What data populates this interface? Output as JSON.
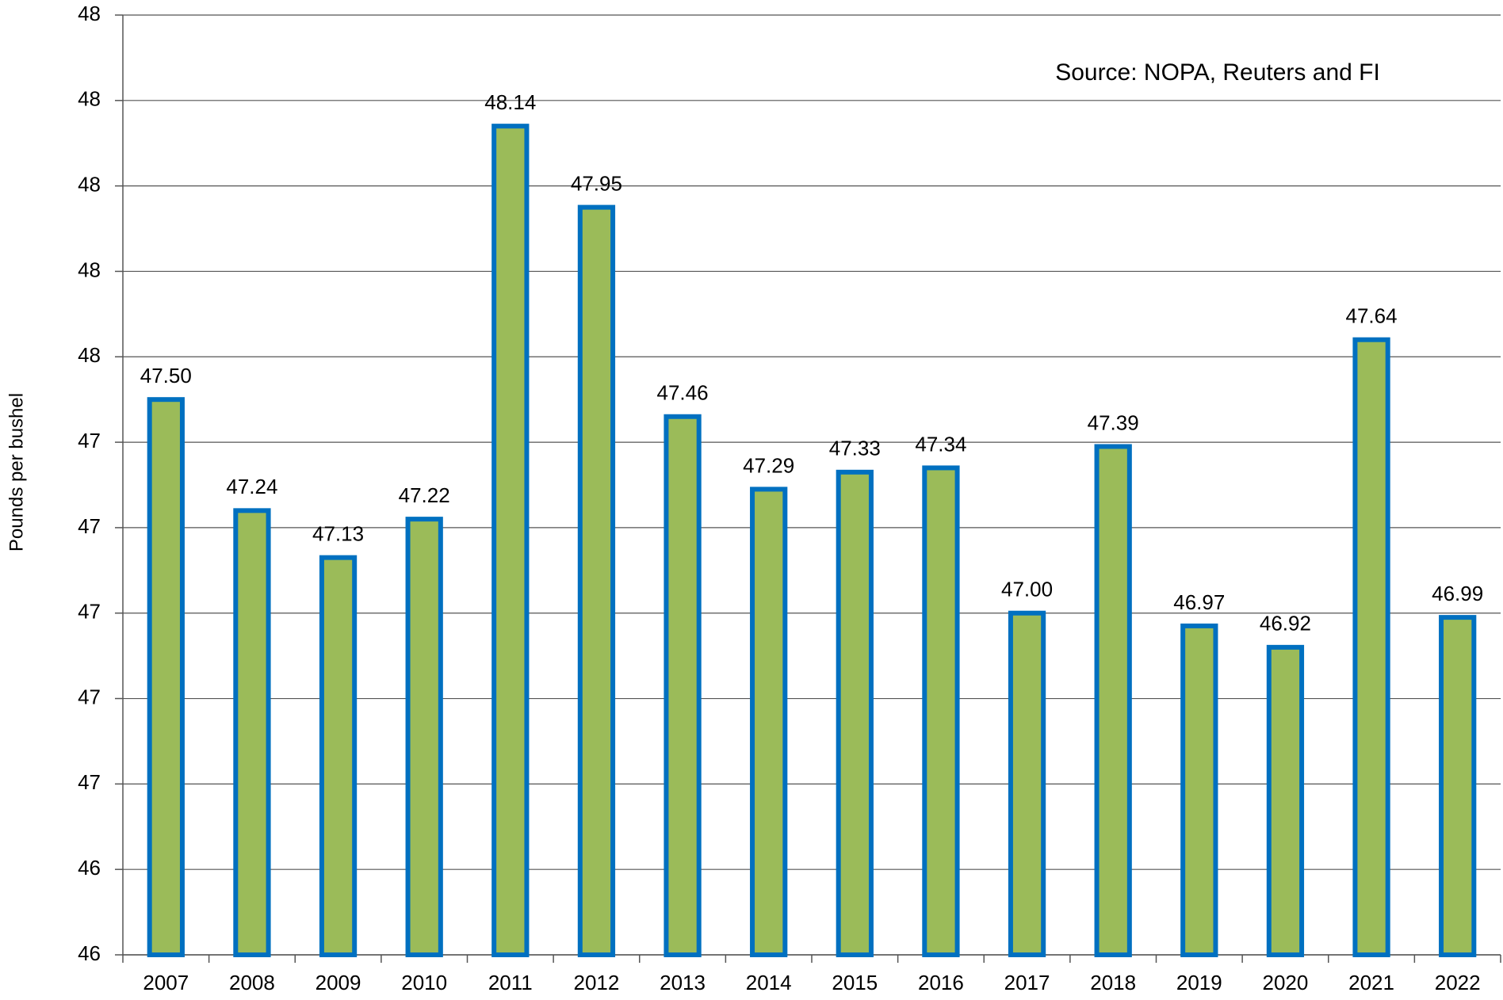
{
  "chart_data": {
    "type": "bar",
    "y_label": "Pounds per bushel",
    "annotation": "Source: NOPA, Reuters and FI",
    "categories": [
      "2007",
      "2008",
      "2009",
      "2010",
      "2011",
      "2012",
      "2013",
      "2014",
      "2015",
      "2016",
      "2017",
      "2018",
      "2019",
      "2020",
      "2021",
      "2022"
    ],
    "values": [
      47.5,
      47.24,
      47.13,
      47.22,
      48.14,
      47.95,
      47.46,
      47.29,
      47.33,
      47.34,
      47.0,
      47.39,
      46.97,
      46.92,
      47.64,
      46.99
    ],
    "value_labels": [
      "47.50",
      "47.24",
      "47.13",
      "47.22",
      "48.14",
      "47.95",
      "47.46",
      "47.29",
      "47.33",
      "47.34",
      "47.00",
      "47.39",
      "46.97",
      "46.92",
      "47.64",
      "46.99"
    ],
    "color": "#9bbb59",
    "edge_color": "#0070c0",
    "ylim": [
      46.2,
      48.4
    ],
    "yticks": [
      {
        "value": 46.2,
        "label": "46"
      },
      {
        "value": 46.4,
        "label": "46"
      },
      {
        "value": 46.6,
        "label": "47"
      },
      {
        "value": 46.8,
        "label": "47"
      },
      {
        "value": 47.0,
        "label": "47"
      },
      {
        "value": 47.2,
        "label": "47"
      },
      {
        "value": 47.4,
        "label": "47"
      },
      {
        "value": 47.6,
        "label": "48"
      },
      {
        "value": 47.8,
        "label": "48"
      },
      {
        "value": 48.0,
        "label": "48"
      },
      {
        "value": 48.2,
        "label": "48"
      },
      {
        "value": 48.4,
        "label": "48"
      }
    ],
    "grid": true
  }
}
